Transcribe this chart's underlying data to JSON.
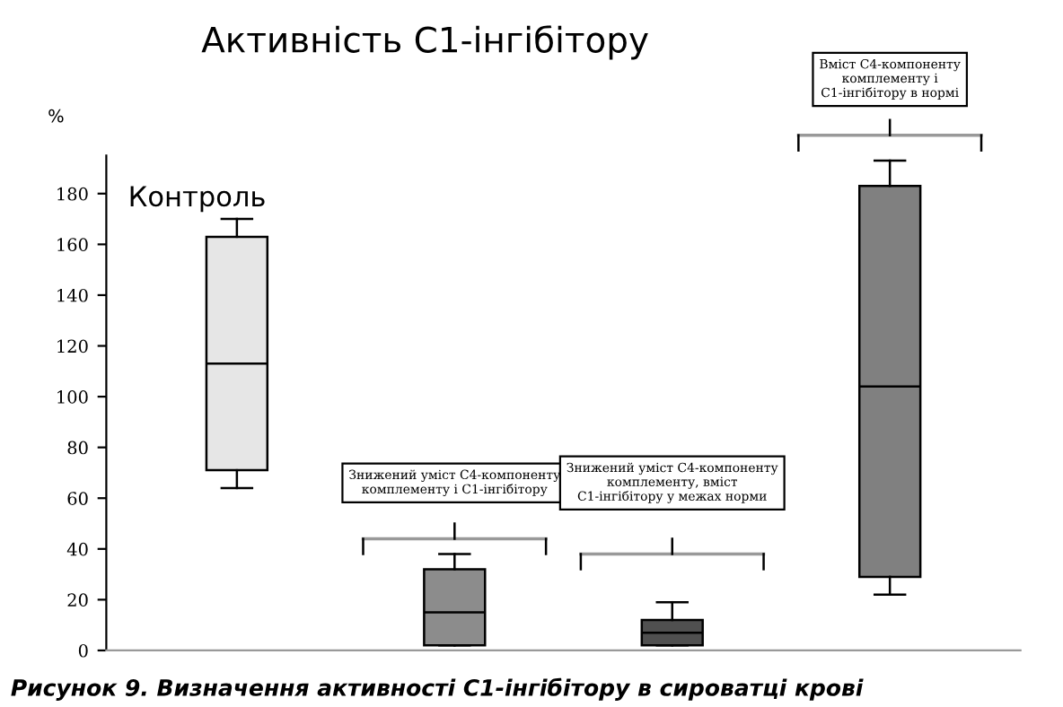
{
  "chart_data": {
    "type": "box",
    "title": "Активність С1-інгібітору",
    "ylabel": "%",
    "categories": [
      null,
      null,
      null,
      null
    ],
    "colors": [
      "#e6e6e6",
      "#8c8c8c",
      "#505050",
      "#808080"
    ],
    "boxes": [
      {
        "low": 64,
        "q1": 71,
        "median": 113,
        "q3": 163,
        "high": 170
      },
      {
        "low": 2,
        "q1": 2,
        "median": 15,
        "q3": 32,
        "high": 38
      },
      {
        "low": 2,
        "q1": 2,
        "median": 7,
        "q3": 12,
        "high": 19
      },
      {
        "low": 22,
        "q1": 29,
        "median": 104,
        "q3": 183,
        "high": 193
      }
    ],
    "ylim": [
      0,
      195
    ],
    "yticks": [
      0,
      20,
      40,
      60,
      80,
      100,
      120,
      140,
      160,
      180
    ],
    "grid": false,
    "annotations": [
      "Контроль",
      "Знижений уміст С4-компоненту комплементу і С1-інгібітору",
      "Знижений уміст С4-компоненту комплементу, вміст С1-інгібітору у межах норми",
      "Вміст С4-компоненту комплементу і С1-інгібітору в нормі",
      "Рисунок 9. Визначення активності С1-інгібітору в сироватці крові"
    ]
  }
}
